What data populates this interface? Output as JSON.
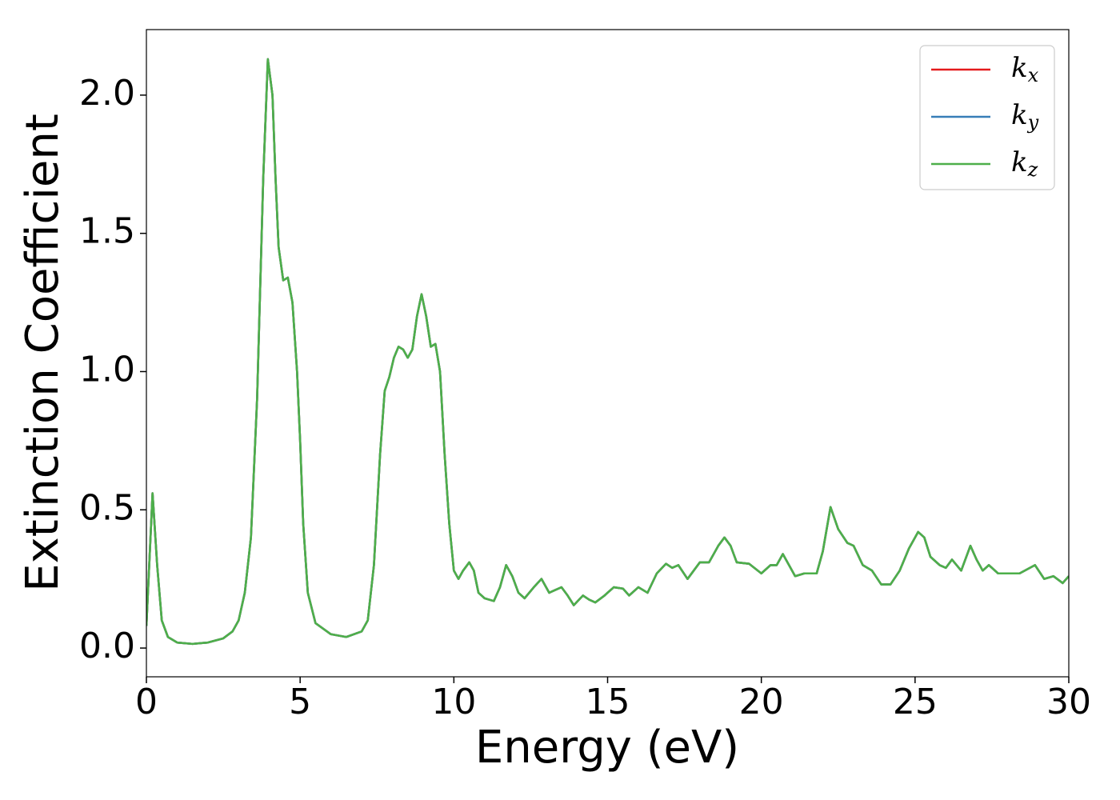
{
  "chart_data": {
    "type": "line",
    "xlabel": "Energy (eV)",
    "ylabel": "Extinction Coefficient",
    "x": [
      0,
      0.2,
      0.35,
      0.5,
      0.7,
      1.0,
      1.5,
      2.0,
      2.5,
      2.8,
      3.0,
      3.2,
      3.4,
      3.6,
      3.8,
      3.95,
      4.1,
      4.2,
      4.3,
      4.45,
      4.6,
      4.75,
      4.9,
      5.0,
      5.1,
      5.25,
      5.5,
      6.0,
      6.5,
      7.0,
      7.2,
      7.4,
      7.6,
      7.75,
      7.9,
      8.05,
      8.2,
      8.35,
      8.5,
      8.65,
      8.8,
      8.95,
      9.1,
      9.25,
      9.4,
      9.55,
      9.7,
      9.85,
      10.0,
      10.15,
      10.3,
      10.5,
      10.65,
      10.8,
      11.0,
      11.3,
      11.5,
      11.7,
      11.9,
      12.1,
      12.3,
      12.6,
      12.85,
      13.1,
      13.3,
      13.5,
      13.7,
      13.9,
      14.2,
      14.4,
      14.6,
      14.9,
      15.2,
      15.5,
      15.7,
      16.0,
      16.3,
      16.6,
      16.9,
      17.1,
      17.3,
      17.6,
      17.8,
      18.0,
      18.3,
      18.6,
      18.8,
      19.0,
      19.2,
      19.6,
      20.0,
      20.3,
      20.5,
      20.7,
      20.9,
      21.1,
      21.4,
      21.8,
      22.0,
      22.25,
      22.5,
      22.8,
      23.0,
      23.3,
      23.6,
      23.9,
      24.2,
      24.5,
      24.8,
      25.1,
      25.3,
      25.5,
      25.8,
      26.0,
      26.2,
      26.5,
      26.8,
      27.0,
      27.2,
      27.4,
      27.7,
      28.0,
      28.4,
      28.9,
      29.2,
      29.5,
      29.8,
      30.0
    ],
    "series": [
      {
        "name": "kx",
        "color": "#e41a1c",
        "values": [
          0.08,
          0.56,
          0.3,
          0.1,
          0.04,
          0.02,
          0.015,
          0.02,
          0.035,
          0.06,
          0.1,
          0.2,
          0.4,
          0.9,
          1.7,
          2.13,
          2.0,
          1.7,
          1.45,
          1.33,
          1.34,
          1.25,
          1.0,
          0.75,
          0.45,
          0.2,
          0.09,
          0.05,
          0.04,
          0.06,
          0.1,
          0.3,
          0.7,
          0.93,
          0.98,
          1.05,
          1.09,
          1.08,
          1.05,
          1.08,
          1.2,
          1.28,
          1.2,
          1.09,
          1.1,
          1.0,
          0.7,
          0.45,
          0.28,
          0.25,
          0.28,
          0.31,
          0.28,
          0.2,
          0.18,
          0.17,
          0.22,
          0.3,
          0.26,
          0.2,
          0.18,
          0.22,
          0.25,
          0.2,
          0.21,
          0.22,
          0.19,
          0.155,
          0.19,
          0.175,
          0.165,
          0.19,
          0.22,
          0.215,
          0.19,
          0.22,
          0.2,
          0.27,
          0.305,
          0.29,
          0.3,
          0.25,
          0.28,
          0.31,
          0.31,
          0.37,
          0.4,
          0.37,
          0.31,
          0.305,
          0.27,
          0.3,
          0.3,
          0.34,
          0.3,
          0.26,
          0.27,
          0.27,
          0.35,
          0.51,
          0.43,
          0.38,
          0.37,
          0.3,
          0.28,
          0.23,
          0.23,
          0.28,
          0.36,
          0.42,
          0.4,
          0.33,
          0.3,
          0.29,
          0.32,
          0.28,
          0.37,
          0.32,
          0.28,
          0.3,
          0.27,
          0.27,
          0.27,
          0.3,
          0.25,
          0.26,
          0.235,
          0.26
        ]
      },
      {
        "name": "ky",
        "color": "#377eb8",
        "values": [
          0.08,
          0.56,
          0.3,
          0.1,
          0.04,
          0.02,
          0.015,
          0.02,
          0.035,
          0.06,
          0.1,
          0.2,
          0.4,
          0.9,
          1.7,
          2.13,
          2.0,
          1.7,
          1.45,
          1.33,
          1.34,
          1.25,
          1.0,
          0.75,
          0.45,
          0.2,
          0.09,
          0.05,
          0.04,
          0.06,
          0.1,
          0.3,
          0.7,
          0.93,
          0.98,
          1.05,
          1.09,
          1.08,
          1.05,
          1.08,
          1.2,
          1.28,
          1.2,
          1.09,
          1.1,
          1.0,
          0.7,
          0.45,
          0.28,
          0.25,
          0.28,
          0.31,
          0.28,
          0.2,
          0.18,
          0.17,
          0.22,
          0.3,
          0.26,
          0.2,
          0.18,
          0.22,
          0.25,
          0.2,
          0.21,
          0.22,
          0.19,
          0.155,
          0.19,
          0.175,
          0.165,
          0.19,
          0.22,
          0.215,
          0.19,
          0.22,
          0.2,
          0.27,
          0.305,
          0.29,
          0.3,
          0.25,
          0.28,
          0.31,
          0.31,
          0.37,
          0.4,
          0.37,
          0.31,
          0.305,
          0.27,
          0.3,
          0.3,
          0.34,
          0.3,
          0.26,
          0.27,
          0.27,
          0.35,
          0.51,
          0.43,
          0.38,
          0.37,
          0.3,
          0.28,
          0.23,
          0.23,
          0.28,
          0.36,
          0.42,
          0.4,
          0.33,
          0.3,
          0.29,
          0.32,
          0.28,
          0.37,
          0.32,
          0.28,
          0.3,
          0.27,
          0.27,
          0.27,
          0.3,
          0.25,
          0.26,
          0.235,
          0.26
        ]
      },
      {
        "name": "kz",
        "color": "#4daf4a",
        "values": [
          0.08,
          0.56,
          0.3,
          0.1,
          0.04,
          0.02,
          0.015,
          0.02,
          0.035,
          0.06,
          0.1,
          0.2,
          0.4,
          0.9,
          1.7,
          2.13,
          2.0,
          1.7,
          1.45,
          1.33,
          1.34,
          1.25,
          1.0,
          0.75,
          0.45,
          0.2,
          0.09,
          0.05,
          0.04,
          0.06,
          0.1,
          0.3,
          0.7,
          0.93,
          0.98,
          1.05,
          1.09,
          1.08,
          1.05,
          1.08,
          1.2,
          1.28,
          1.2,
          1.09,
          1.1,
          1.0,
          0.7,
          0.45,
          0.28,
          0.25,
          0.28,
          0.31,
          0.28,
          0.2,
          0.18,
          0.17,
          0.22,
          0.3,
          0.26,
          0.2,
          0.18,
          0.22,
          0.25,
          0.2,
          0.21,
          0.22,
          0.19,
          0.155,
          0.19,
          0.175,
          0.165,
          0.19,
          0.22,
          0.215,
          0.19,
          0.22,
          0.2,
          0.27,
          0.305,
          0.29,
          0.3,
          0.25,
          0.28,
          0.31,
          0.31,
          0.37,
          0.4,
          0.37,
          0.31,
          0.305,
          0.27,
          0.3,
          0.3,
          0.34,
          0.3,
          0.26,
          0.27,
          0.27,
          0.35,
          0.51,
          0.43,
          0.38,
          0.37,
          0.3,
          0.28,
          0.23,
          0.23,
          0.28,
          0.36,
          0.42,
          0.4,
          0.33,
          0.3,
          0.29,
          0.32,
          0.28,
          0.37,
          0.32,
          0.28,
          0.3,
          0.27,
          0.27,
          0.27,
          0.3,
          0.25,
          0.26,
          0.235,
          0.26
        ]
      }
    ],
    "xlim": [
      0,
      30
    ],
    "xticks": [
      0,
      5,
      10,
      15,
      20,
      25,
      30
    ],
    "ylim": [
      -0.104,
      2.237
    ],
    "yticks": [
      {
        "value": 0,
        "label": "0.0"
      },
      0.5,
      {
        "value": 1,
        "label": "1.0"
      },
      1.5,
      {
        "value": 2,
        "label": "2.0"
      }
    ],
    "grid": false,
    "legend": "upper right"
  }
}
